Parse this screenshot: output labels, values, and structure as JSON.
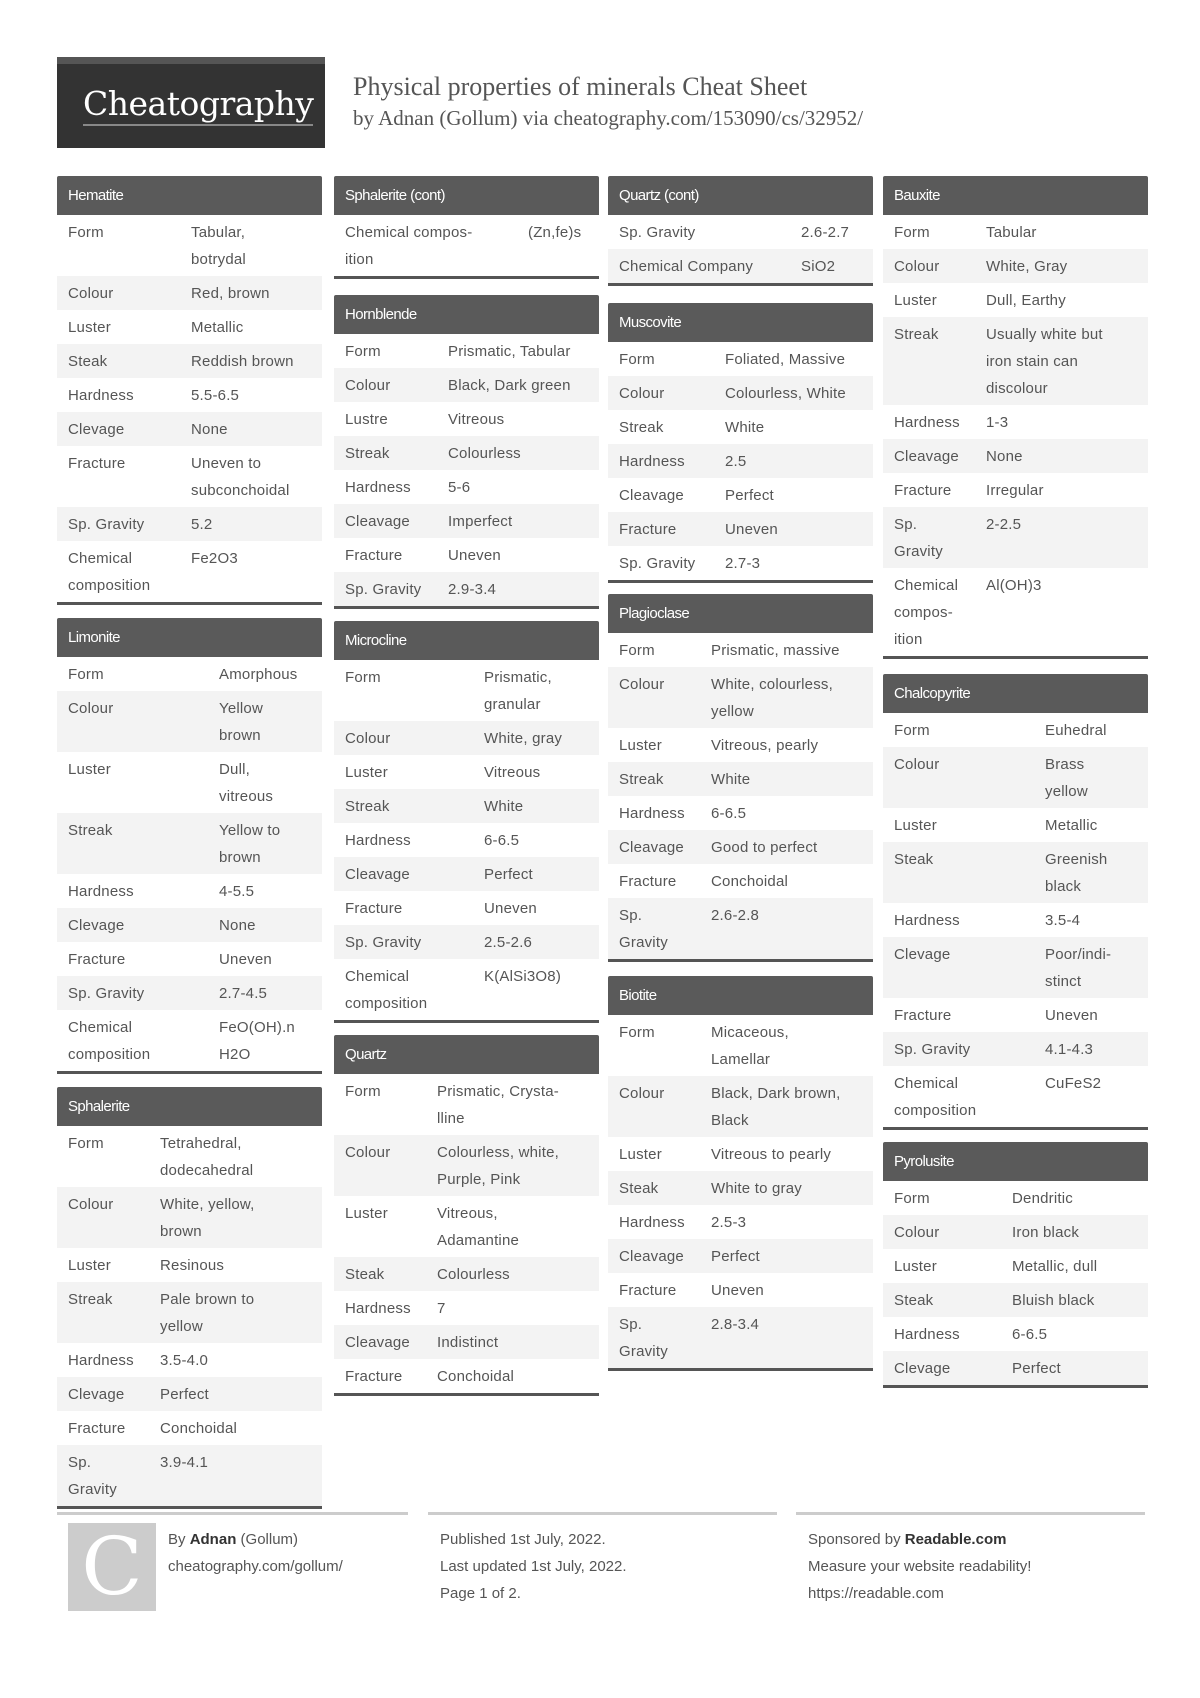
{
  "header": {
    "logo": "Cheatography",
    "title": "Physical properties of minerals Cheat Sheet",
    "subtitle": "by Adnan (Gollum) via cheatography.com/153090/cs/32952/"
  },
  "sections": [
    {
      "title": "Hematite",
      "rows": [
        [
          "Form",
          "Tabular,\nbotrydal"
        ],
        [
          "Colour",
          "Red, brown"
        ],
        [
          "Luster",
          "Metallic"
        ],
        [
          "Steak",
          "Reddish brown"
        ],
        [
          "Hardness",
          "5.5-6.5"
        ],
        [
          "Clevage",
          "None"
        ],
        [
          "Fracture",
          "Uneven to\nsubconchoidal"
        ],
        [
          "Sp. Gravity",
          "5.2"
        ],
        [
          "Chemical\ncomposition",
          "Fe2O3"
        ]
      ]
    },
    {
      "title": "Limonite",
      "rows": [
        [
          "Form",
          "Amorphous"
        ],
        [
          "Colour",
          "Yellow\nbrown"
        ],
        [
          "Luster",
          "Dull,\nvitreous"
        ],
        [
          "Streak",
          "Yellow to\nbrown"
        ],
        [
          "Hardness",
          "4-5.5"
        ],
        [
          "Clevage",
          "None"
        ],
        [
          "Fracture",
          "Uneven"
        ],
        [
          "Sp. Gravity",
          "2.7-4.5"
        ],
        [
          "Chemical\ncomposition",
          "FeO(OH).n\nH2O"
        ]
      ]
    },
    {
      "title": "Sphalerite",
      "rows": [
        [
          "Form",
          "Tetrahedral,\ndodecahedral"
        ],
        [
          "Colour",
          "White, yellow,\nbrown"
        ],
        [
          "Luster",
          "Resinous"
        ],
        [
          "Streak",
          "Pale brown to\nyellow"
        ],
        [
          "Hardness",
          "3.5-4.0"
        ],
        [
          "Clevage",
          "Perfect"
        ],
        [
          "Fracture",
          "Conchoidal"
        ],
        [
          "Sp.\nGravity",
          "3.9-4.1"
        ]
      ]
    },
    {
      "title": "Sphalerite (cont)",
      "rows": [
        [
          "Chemical compos-\nition",
          "(Zn,fe)s"
        ]
      ]
    },
    {
      "title": "Hornblende",
      "rows": [
        [
          "Form",
          "Prismatic, Tabular"
        ],
        [
          "Colour",
          "Black, Dark green"
        ],
        [
          "Lustre",
          "Vitreous"
        ],
        [
          "Streak",
          "Colourless"
        ],
        [
          "Hardness",
          "5-6"
        ],
        [
          "Cleavage",
          "Imperfect"
        ],
        [
          "Fracture",
          "Uneven"
        ],
        [
          "Sp. Gravity",
          "2.9-3.4"
        ]
      ]
    },
    {
      "title": "Microcline",
      "rows": [
        [
          "Form",
          "Prismatic,\ngranular"
        ],
        [
          "Colour",
          "White, gray"
        ],
        [
          "Luster",
          "Vitreous"
        ],
        [
          "Streak",
          "White"
        ],
        [
          "Hardness",
          "6-6.5"
        ],
        [
          "Cleavage",
          "Perfect"
        ],
        [
          "Fracture",
          "Uneven"
        ],
        [
          "Sp. Gravity",
          "2.5-2.6"
        ],
        [
          "Chemical\ncomposition",
          "K(AlSi3O8)"
        ]
      ]
    },
    {
      "title": "Quartz",
      "rows": [
        [
          "Form",
          "Prismatic, Crysta-\nlline"
        ],
        [
          "Colour",
          "Colourless, white,\nPurple, Pink"
        ],
        [
          "Luster",
          "Vitreous,\nAdamantine"
        ],
        [
          "Steak",
          "Colourless"
        ],
        [
          "Hardness",
          "7"
        ],
        [
          "Cleavage",
          "Indistinct"
        ],
        [
          "Fracture",
          "Conchoidal"
        ]
      ]
    },
    {
      "title": "Quartz (cont)",
      "rows": [
        [
          "Sp. Gravity",
          "2.6-2.7"
        ],
        [
          "Chemical Company",
          "SiO2"
        ]
      ]
    },
    {
      "title": "Muscovite",
      "rows": [
        [
          "Form",
          "Foliated, Massive"
        ],
        [
          "Colour",
          "Colourless, White"
        ],
        [
          "Streak",
          "White"
        ],
        [
          "Hardness",
          "2.5"
        ],
        [
          "Cleavage",
          "Perfect"
        ],
        [
          "Fracture",
          "Uneven"
        ],
        [
          "Sp. Gravity",
          "2.7-3"
        ]
      ]
    },
    {
      "title": "Plagioclase",
      "rows": [
        [
          "Form",
          "Prismatic, massive"
        ],
        [
          "Colour",
          "White, colourless,\nyellow"
        ],
        [
          "Luster",
          "Vitreous, pearly"
        ],
        [
          "Streak",
          "White"
        ],
        [
          "Hardness",
          "6-6.5"
        ],
        [
          "Cleavage",
          "Good to perfect"
        ],
        [
          "Fracture",
          "Conchoidal"
        ],
        [
          "Sp.\nGravity",
          "2.6-2.8"
        ]
      ]
    },
    {
      "title": "Biotite",
      "rows": [
        [
          "Form",
          "Micaceous,\nLamellar"
        ],
        [
          "Colour",
          "Black, Dark brown,\nBlack"
        ],
        [
          "Luster",
          "Vitreous to pearly"
        ],
        [
          "Steak",
          "White to gray"
        ],
        [
          "Hardness",
          "2.5-3"
        ],
        [
          "Cleavage",
          "Perfect"
        ],
        [
          "Fracture",
          "Uneven"
        ],
        [
          "Sp.\nGravity",
          "2.8-3.4"
        ]
      ]
    },
    {
      "title": "Bauxite",
      "rows": [
        [
          "Form",
          "Tabular"
        ],
        [
          "Colour",
          "White, Gray"
        ],
        [
          "Luster",
          "Dull, Earthy"
        ],
        [
          "Streak",
          "Usually white but\niron stain can\ndiscolour"
        ],
        [
          "Hardness",
          "1-3"
        ],
        [
          "Cleavage",
          "None"
        ],
        [
          "Fracture",
          "Irregular"
        ],
        [
          "Sp.\nGravity",
          "2-2.5"
        ],
        [
          "Chemical\ncompos-\nition",
          "Al(OH)3"
        ]
      ]
    },
    {
      "title": "Chalcopyrite",
      "rows": [
        [
          "Form",
          "Euhedral"
        ],
        [
          "Colour",
          "Brass\nyellow"
        ],
        [
          "Luster",
          "Metallic"
        ],
        [
          "Steak",
          "Greenish\nblack"
        ],
        [
          "Hardness",
          "3.5-4"
        ],
        [
          "Clevage",
          "Poor/indi-\nstinct"
        ],
        [
          "Fracture",
          "Uneven"
        ],
        [
          "Sp. Gravity",
          "4.1-4.3"
        ],
        [
          "Chemical\ncomposition",
          "CuFeS2"
        ]
      ]
    },
    {
      "title": "Pyrolusite",
      "rows": [
        [
          "Form",
          "Dendritic"
        ],
        [
          "Colour",
          "Iron black"
        ],
        [
          "Luster",
          "Metallic, dull"
        ],
        [
          "Steak",
          "Bluish black"
        ],
        [
          "Hardness",
          "6-6.5"
        ],
        [
          "Clevage",
          "Perfect"
        ]
      ]
    }
  ],
  "footer": {
    "avatar_letter": "C",
    "by_prefix": "By ",
    "author": "Adnan",
    "author_handle": " (Gollum)",
    "author_link": "cheatography.com/gollum/",
    "published": "Published 1st July, 2022.",
    "updated": "Last updated 1st July, 2022.",
    "page": "Page 1 of 2.",
    "sponsor_prefix": "Sponsored by ",
    "sponsor": "Readable.com",
    "sponsor_tagline": "Measure your website readability!",
    "sponsor_link": "https://readable.com"
  },
  "colors": {
    "header_bg": "#5a5a5a",
    "stripe": "#f3f3f3",
    "logo_bg": "#333333",
    "text": "#555555"
  }
}
